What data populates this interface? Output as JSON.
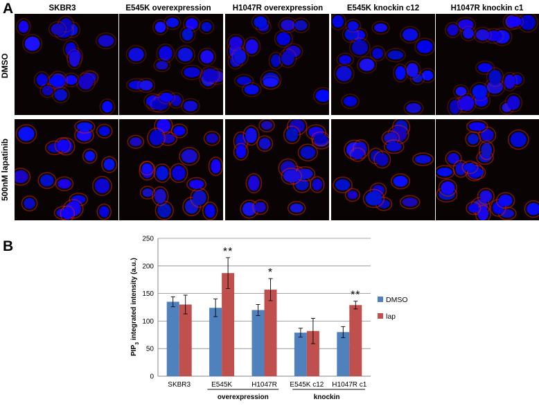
{
  "panel_a": {
    "letter": "A",
    "columns": [
      "SKBR3",
      "E545K overexpression",
      "H1047R overexpression",
      "E545K knockin c12",
      "H1047R knockin c1"
    ],
    "rows": [
      "DMSO",
      "500nM lapatinib"
    ]
  },
  "panel_b": {
    "letter": "B",
    "group_labels": {
      "overexpression": "overexpression",
      "knockin": "knockin"
    }
  },
  "chart_data": {
    "type": "bar",
    "categories": [
      "SKBR3",
      "E545K",
      "H1047R",
      "E545K c12",
      "H1047R c1"
    ],
    "ylabel_main": "PIP",
    "ylabel_sub": "3",
    "ylabel_rest": " integrated intensity (a.u.)",
    "ylim": [
      0,
      250
    ],
    "yticks": [
      "0",
      "50",
      "100",
      "150",
      "200",
      "250"
    ],
    "grid": true,
    "legend_position": "right",
    "series": [
      {
        "name": "DMSO",
        "color": "#4f81bd",
        "values": [
          135,
          124,
          120,
          79,
          80
        ],
        "errors": [
          9,
          16,
          10,
          8,
          10
        ]
      },
      {
        "name": "lap",
        "color": "#c0504d",
        "values": [
          130,
          187,
          157,
          82,
          129
        ],
        "errors": [
          17,
          28,
          20,
          23,
          7
        ]
      }
    ],
    "annotations": [
      {
        "category": 1,
        "series": 1,
        "text": "**"
      },
      {
        "category": 2,
        "series": 1,
        "text": "*"
      },
      {
        "category": 4,
        "series": 1,
        "text": "**"
      }
    ]
  }
}
